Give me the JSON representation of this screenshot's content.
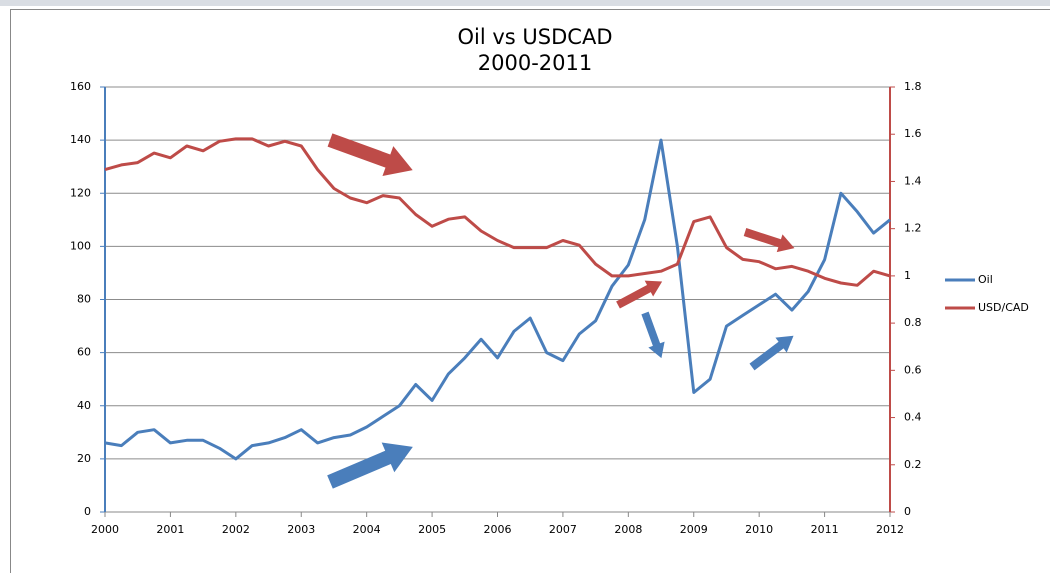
{
  "chart_data": {
    "type": "line",
    "title": "Oil vs USDCAD",
    "subtitle": "2000-2011",
    "x": [
      2000,
      2000.25,
      2000.5,
      2000.75,
      2001,
      2001.25,
      2001.5,
      2001.75,
      2002,
      2002.25,
      2002.5,
      2002.75,
      2003,
      2003.25,
      2003.5,
      2003.75,
      2004,
      2004.25,
      2004.5,
      2004.75,
      2005,
      2005.25,
      2005.5,
      2005.75,
      2006,
      2006.25,
      2006.5,
      2006.75,
      2007,
      2007.25,
      2007.5,
      2007.75,
      2008,
      2008.25,
      2008.5,
      2008.75,
      2009,
      2009.25,
      2009.5,
      2009.75,
      2010,
      2010.25,
      2010.5,
      2010.75,
      2011,
      2011.25,
      2011.5,
      2011.75,
      2012
    ],
    "series": [
      {
        "name": "Oil",
        "color": "#4a7ebb",
        "values": [
          26,
          25,
          30,
          31,
          26,
          27,
          27,
          24,
          20,
          25,
          26,
          28,
          31,
          26,
          28,
          29,
          32,
          36,
          40,
          48,
          42,
          52,
          58,
          65,
          58,
          68,
          73,
          60,
          57,
          67,
          72,
          85,
          93,
          110,
          140,
          100,
          45,
          50,
          70,
          74,
          78,
          82,
          76,
          83,
          95,
          120,
          113,
          105,
          110
        ]
      },
      {
        "name": "USD/CAD",
        "color": "#be4b48",
        "axis": "y2",
        "values": [
          1.45,
          1.47,
          1.48,
          1.52,
          1.5,
          1.55,
          1.53,
          1.57,
          1.58,
          1.58,
          1.55,
          1.57,
          1.55,
          1.45,
          1.37,
          1.33,
          1.31,
          1.34,
          1.33,
          1.26,
          1.21,
          1.24,
          1.25,
          1.19,
          1.15,
          1.12,
          1.12,
          1.12,
          1.15,
          1.13,
          1.05,
          1.0,
          1.0,
          1.01,
          1.02,
          1.05,
          1.23,
          1.25,
          1.12,
          1.07,
          1.06,
          1.03,
          1.04,
          1.02,
          0.99,
          0.97,
          0.96,
          1.02,
          1.0
        ]
      }
    ],
    "xlim": [
      2000,
      2012
    ],
    "xticks": [
      2000,
      2001,
      2002,
      2003,
      2004,
      2005,
      2006,
      2007,
      2008,
      2009,
      2010,
      2011,
      2012
    ],
    "ylim": [
      0,
      160
    ],
    "yticks": [
      0,
      20,
      40,
      60,
      80,
      100,
      120,
      140,
      160
    ],
    "y2lim": [
      0,
      1.8
    ],
    "y2ticks": [
      0,
      0.2,
      0.4,
      0.6,
      0.8,
      1,
      1.2,
      1.4,
      1.6,
      1.8
    ],
    "grid": true,
    "legend": "right"
  }
}
